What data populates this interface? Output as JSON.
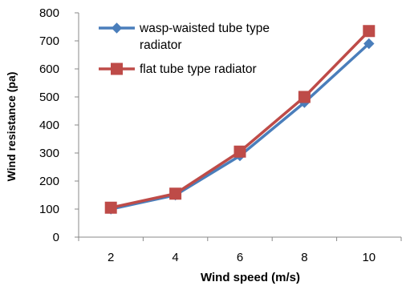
{
  "chart_data": {
    "type": "line",
    "x": [
      2,
      4,
      6,
      8,
      10
    ],
    "series": [
      {
        "name": "wasp-waisted tube type radiator",
        "values": [
          100,
          150,
          290,
          480,
          690
        ],
        "color": "#4a7ebb",
        "marker": "diamond"
      },
      {
        "name": "flat tube type radiator",
        "values": [
          105,
          155,
          305,
          500,
          735
        ],
        "color": "#be4b48",
        "marker": "square"
      }
    ],
    "xlabel": "Wind speed (m/s)",
    "ylabel": "Wind resistance (pa)",
    "ylim": [
      0,
      800
    ],
    "yticks": [
      "0",
      "100",
      "200",
      "300",
      "400",
      "500",
      "600",
      "700",
      "800"
    ],
    "xticks": [
      "2",
      "4",
      "6",
      "8",
      "10"
    ],
    "grid": false,
    "legend_position": "top-left"
  }
}
